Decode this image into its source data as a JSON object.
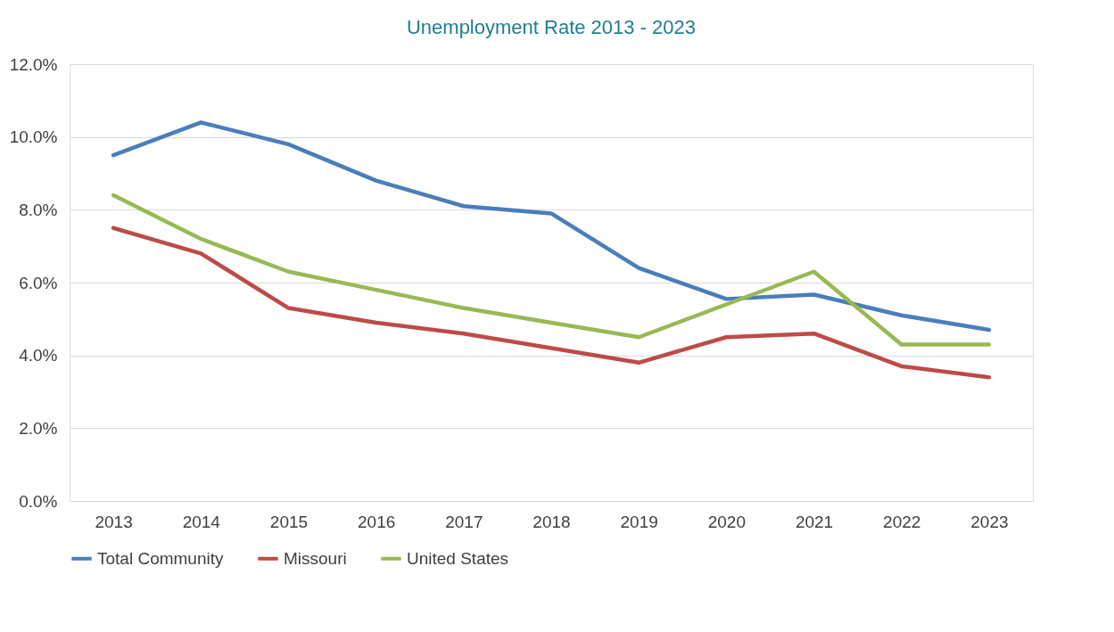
{
  "chart_data": {
    "type": "line",
    "title": "Unemployment Rate 2013 - 2023",
    "categories": [
      "2013",
      "2014",
      "2015",
      "2016",
      "2017",
      "2018",
      "2019",
      "2020",
      "2021",
      "2022",
      "2023"
    ],
    "series": [
      {
        "name": "Total Community",
        "color": "#4a7ebb",
        "values": [
          9.5,
          10.4,
          9.8,
          8.8,
          8.1,
          7.9,
          6.4,
          5.55,
          5.67,
          5.1,
          4.7
        ]
      },
      {
        "name": "Missouri",
        "color": "#be4b48",
        "values": [
          7.5,
          6.8,
          5.3,
          4.9,
          4.6,
          4.2,
          3.8,
          4.5,
          4.6,
          3.7,
          3.4
        ]
      },
      {
        "name": "United States",
        "color": "#98b954",
        "values": [
          8.4,
          7.2,
          6.3,
          5.8,
          5.3,
          4.9,
          4.5,
          5.4,
          6.3,
          4.3,
          4.3
        ]
      }
    ],
    "ylim": [
      0,
      12
    ],
    "yticks": [
      {
        "value": 0,
        "label": "0.0%"
      },
      {
        "value": 2,
        "label": "2.0%"
      },
      {
        "value": 4,
        "label": "4.0%"
      },
      {
        "value": 6,
        "label": "6.0%"
      },
      {
        "value": 8,
        "label": "8.0%"
      },
      {
        "value": 10,
        "label": "10.0%"
      },
      {
        "value": 12,
        "label": "12.0%"
      }
    ],
    "grid": "y",
    "legend": "bottom",
    "line_style": "solid"
  }
}
